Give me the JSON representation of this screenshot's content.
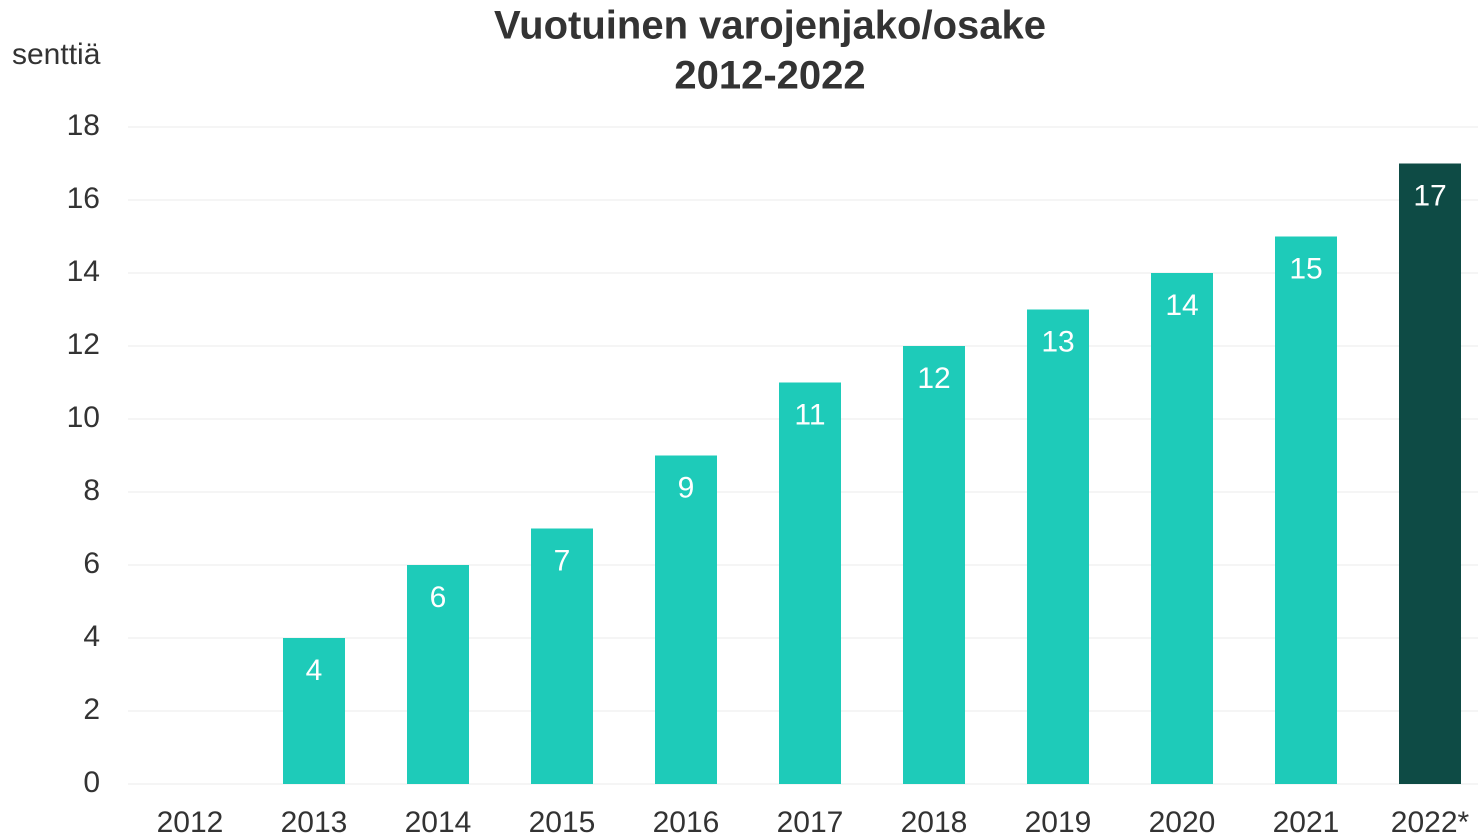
{
  "chart_data": {
    "type": "bar",
    "title": [
      "Vuotuinen varojenjako/osake",
      "2012-2022"
    ],
    "y_label": "senttiä",
    "categories": [
      "2012",
      "2013",
      "2014",
      "2015",
      "2016",
      "2017",
      "2018",
      "2019",
      "2020",
      "2021",
      "2022*"
    ],
    "values": [
      null,
      4,
      6,
      7,
      9,
      11,
      12,
      13,
      14,
      15,
      17
    ],
    "colors": [
      "#1ecbb9",
      "#1ecbb9",
      "#1ecbb9",
      "#1ecbb9",
      "#1ecbb9",
      "#1ecbb9",
      "#1ecbb9",
      "#1ecbb9",
      "#1ecbb9",
      "#1ecbb9",
      "#0e4b45"
    ],
    "ylim": [
      0,
      18
    ],
    "yticks": [
      0,
      2,
      4,
      6,
      8,
      10,
      12,
      14,
      16,
      18
    ],
    "grid": true
  }
}
